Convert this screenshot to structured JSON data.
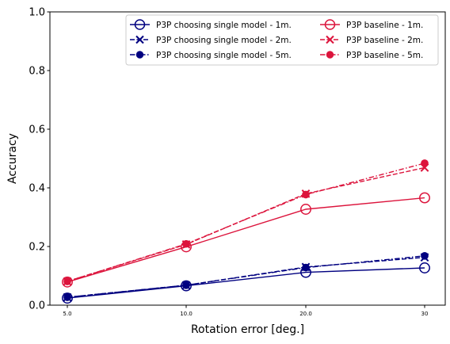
{
  "chart_data": {
    "type": "line",
    "xlabel": "Rotation error [deg.]",
    "ylabel": "Accuracy",
    "categories": [
      "5.0",
      "10.0",
      "20.0",
      "30"
    ],
    "ylim": [
      0.0,
      1.0
    ],
    "yticks": [
      "0.0",
      "0.2",
      "0.4",
      "0.6",
      "0.8",
      "1.0"
    ],
    "grid": false,
    "legend_position": "top-right",
    "legend_columns": 2,
    "series": [
      {
        "name": "P3P choosing single model - 1m.",
        "values": [
          0.024,
          0.066,
          0.112,
          0.127
        ],
        "color": "#000080",
        "linestyle": "solid",
        "marker": "open-circle"
      },
      {
        "name": "P3P choosing single model - 2m.",
        "values": [
          0.027,
          0.068,
          0.13,
          0.163
        ],
        "color": "#000080",
        "linestyle": "dashed",
        "marker": "x"
      },
      {
        "name": "P3P choosing single model - 5m.",
        "values": [
          0.027,
          0.068,
          0.128,
          0.168
        ],
        "color": "#000080",
        "linestyle": "dashdot",
        "marker": "filled-circle"
      },
      {
        "name": "P3P baseline - 1m.",
        "values": [
          0.079,
          0.199,
          0.327,
          0.366
        ],
        "color": "#dc143c",
        "linestyle": "solid",
        "marker": "open-circle"
      },
      {
        "name": "P3P baseline - 2m.",
        "values": [
          0.081,
          0.207,
          0.38,
          0.469
        ],
        "color": "#dc143c",
        "linestyle": "dashed",
        "marker": "x"
      },
      {
        "name": "P3P baseline - 5m.",
        "values": [
          0.081,
          0.209,
          0.377,
          0.484
        ],
        "color": "#dc143c",
        "linestyle": "dashdot",
        "marker": "filled-circle"
      }
    ]
  }
}
